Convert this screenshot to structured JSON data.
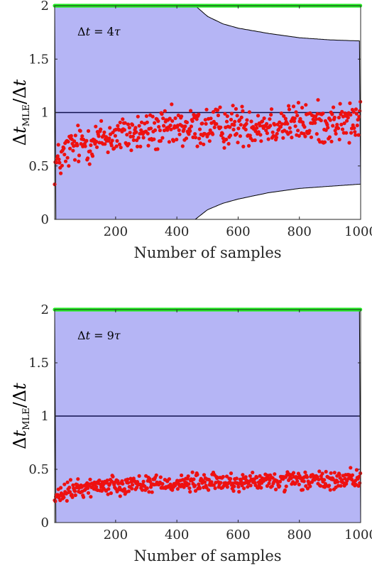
{
  "chart_data": [
    {
      "type": "scatter",
      "panel": "top",
      "xlabel": "Number of samples",
      "ylabel": "Δt_MLE / Δt",
      "annotation": "Δt = 4τ",
      "xlim": [
        1,
        1000
      ],
      "ylim": [
        0,
        2
      ],
      "xticks": [
        200,
        400,
        600,
        800,
        1000
      ],
      "yticks": [
        0,
        0.5,
        1,
        1.5,
        2
      ],
      "reference_line": 1,
      "band": {
        "upper": [
          [
            1,
            2.0
          ],
          [
            300,
            2.0
          ],
          [
            460,
            2.0
          ],
          [
            500,
            1.9
          ],
          [
            550,
            1.83
          ],
          [
            600,
            1.79
          ],
          [
            700,
            1.74
          ],
          [
            800,
            1.7
          ],
          [
            900,
            1.68
          ],
          [
            1000,
            1.67
          ]
        ],
        "lower": [
          [
            1,
            0.0
          ],
          [
            300,
            0.0
          ],
          [
            460,
            0.0
          ],
          [
            500,
            0.09
          ],
          [
            550,
            0.15
          ],
          [
            600,
            0.19
          ],
          [
            700,
            0.25
          ],
          [
            800,
            0.29
          ],
          [
            900,
            0.31
          ],
          [
            1000,
            0.33
          ]
        ]
      },
      "estimates_trend": [
        [
          1,
          0.5
        ],
        [
          50,
          0.66
        ],
        [
          100,
          0.72
        ],
        [
          200,
          0.78
        ],
        [
          300,
          0.82
        ],
        [
          400,
          0.84
        ],
        [
          500,
          0.86
        ],
        [
          600,
          0.88
        ],
        [
          700,
          0.89
        ],
        [
          800,
          0.9
        ],
        [
          900,
          0.9
        ],
        [
          1000,
          0.91
        ]
      ],
      "estimates_spread": 0.11,
      "saturated_value": 2,
      "colors": {
        "band": "#b5b5f5",
        "estimates": "#ee1111",
        "saturated": "#22ee22",
        "reference": "#10104f"
      }
    },
    {
      "type": "scatter",
      "panel": "bottom",
      "xlabel": "Number of samples",
      "ylabel": "Δt_MLE / Δt",
      "annotation": "Δt = 9τ",
      "xlim": [
        1,
        1000
      ],
      "ylim": [
        0,
        2
      ],
      "xticks": [
        200,
        400,
        600,
        800,
        1000
      ],
      "yticks": [
        0,
        0.5,
        1,
        1.5,
        2
      ],
      "reference_line": 1,
      "band": {
        "upper": [
          [
            1,
            2.0
          ],
          [
            1000,
            2.0
          ]
        ],
        "lower": [
          [
            1,
            0.0
          ],
          [
            1000,
            0.0
          ]
        ]
      },
      "estimates_trend": [
        [
          1,
          0.22
        ],
        [
          50,
          0.3
        ],
        [
          100,
          0.33
        ],
        [
          200,
          0.36
        ],
        [
          400,
          0.37
        ],
        [
          600,
          0.38
        ],
        [
          800,
          0.39
        ],
        [
          1000,
          0.4
        ]
      ],
      "estimates_spread": 0.05,
      "saturated_value": 2,
      "colors": {
        "band": "#b5b5f5",
        "estimates": "#ee1111",
        "saturated": "#22ee22",
        "reference": "#10104f"
      }
    }
  ]
}
